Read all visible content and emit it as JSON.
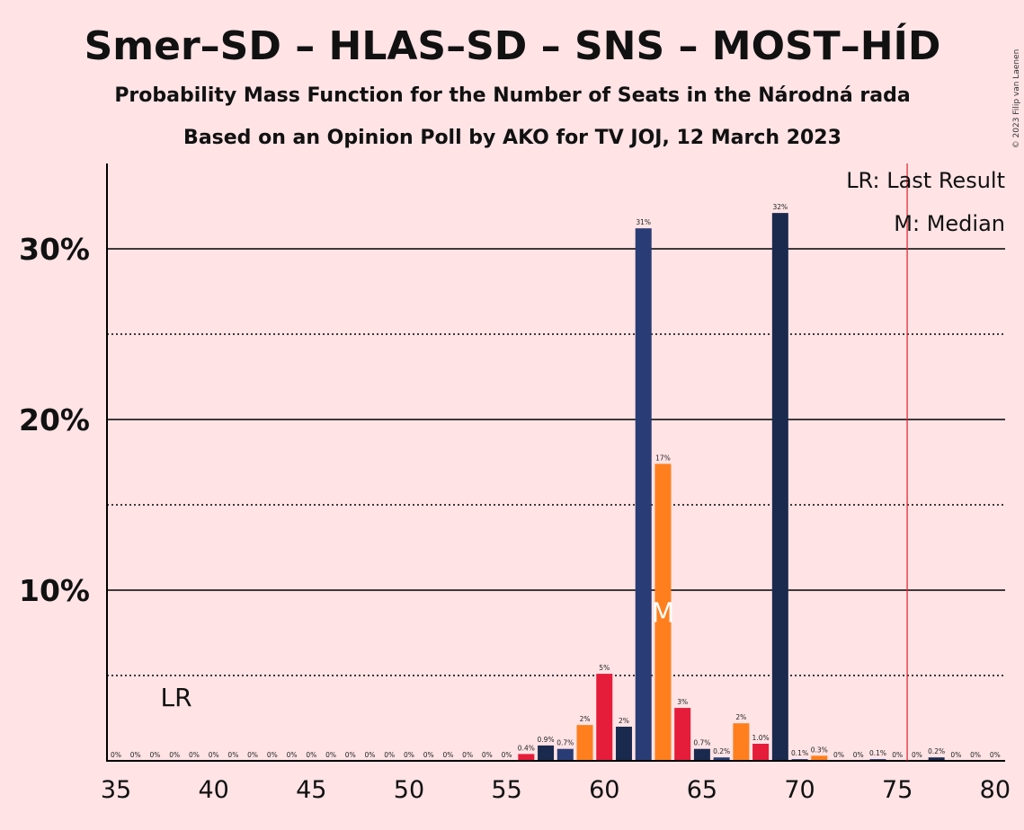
{
  "copyright": "© 2023 Filip van Laenen",
  "chart_data": {
    "type": "bar",
    "title": "Smer–SD – HLAS–SD – SNS – MOST–HÍD",
    "subtitle": "Probability Mass Function for the Number of Seats in the Národná rada",
    "subtitle2": "Based on an Opinion Poll by AKO for TV JOJ, 12 March 2023",
    "xlabel": "",
    "ylabel": "",
    "xlim": [
      35,
      80
    ],
    "ylim": [
      0,
      35
    ],
    "x_ticks": [
      35,
      40,
      45,
      50,
      55,
      60,
      65,
      70,
      75,
      80
    ],
    "y_ticks": [
      {
        "value": 10,
        "label": "10%"
      },
      {
        "value": 20,
        "label": "20%"
      },
      {
        "value": 30,
        "label": "30%"
      }
    ],
    "dotted_gridlines": [
      5,
      15,
      25
    ],
    "last_result": {
      "seat": 76,
      "label": "LR",
      "legend": "LR: Last Result",
      "color": "#E0202A"
    },
    "median": {
      "seat": 63,
      "label": "M",
      "legend": "M: Median"
    },
    "colors": [
      "#E51D3A",
      "#1A2A4E",
      "#2A3C75",
      "#FF7F1E"
    ],
    "bars": [
      {
        "seat": 35,
        "value": 0,
        "label": "0%",
        "color": 0
      },
      {
        "seat": 36,
        "value": 0,
        "label": "0%",
        "color": 0
      },
      {
        "seat": 37,
        "value": 0,
        "label": "0%",
        "color": 0
      },
      {
        "seat": 38,
        "value": 0,
        "label": "0%",
        "color": 0
      },
      {
        "seat": 39,
        "value": 0,
        "label": "0%",
        "color": 0
      },
      {
        "seat": 40,
        "value": 0,
        "label": "0%",
        "color": 0
      },
      {
        "seat": 41,
        "value": 0,
        "label": "0%",
        "color": 0
      },
      {
        "seat": 42,
        "value": 0,
        "label": "0%",
        "color": 0
      },
      {
        "seat": 43,
        "value": 0,
        "label": "0%",
        "color": 0
      },
      {
        "seat": 44,
        "value": 0,
        "label": "0%",
        "color": 0
      },
      {
        "seat": 45,
        "value": 0,
        "label": "0%",
        "color": 0
      },
      {
        "seat": 46,
        "value": 0,
        "label": "0%",
        "color": 0
      },
      {
        "seat": 47,
        "value": 0,
        "label": "0%",
        "color": 0
      },
      {
        "seat": 48,
        "value": 0,
        "label": "0%",
        "color": 0
      },
      {
        "seat": 49,
        "value": 0,
        "label": "0%",
        "color": 0
      },
      {
        "seat": 50,
        "value": 0,
        "label": "0%",
        "color": 0
      },
      {
        "seat": 51,
        "value": 0,
        "label": "0%",
        "color": 0
      },
      {
        "seat": 52,
        "value": 0,
        "label": "0%",
        "color": 0
      },
      {
        "seat": 53,
        "value": 0,
        "label": "0%",
        "color": 0
      },
      {
        "seat": 54,
        "value": 0,
        "label": "0%",
        "color": 0
      },
      {
        "seat": 55,
        "value": 0,
        "label": "0%",
        "color": 0
      },
      {
        "seat": 56,
        "value": 0.4,
        "label": "0.4%",
        "color": 0
      },
      {
        "seat": 57,
        "value": 0.9,
        "label": "0.9%",
        "color": 1
      },
      {
        "seat": 58,
        "value": 0.7,
        "label": "0.7%",
        "color": 2
      },
      {
        "seat": 59,
        "value": 2.1,
        "label": "2%",
        "color": 3
      },
      {
        "seat": 60,
        "value": 5.1,
        "label": "5%",
        "color": 0
      },
      {
        "seat": 61,
        "value": 2.0,
        "label": "2%",
        "color": 1
      },
      {
        "seat": 62,
        "value": 31.2,
        "label": "31%",
        "color": 2
      },
      {
        "seat": 63,
        "value": 17.4,
        "label": "17%",
        "color": 3
      },
      {
        "seat": 64,
        "value": 3.1,
        "label": "3%",
        "color": 0
      },
      {
        "seat": 65,
        "value": 0.7,
        "label": "0.7%",
        "color": 1
      },
      {
        "seat": 66,
        "value": 0.2,
        "label": "0.2%",
        "color": 2
      },
      {
        "seat": 67,
        "value": 2.2,
        "label": "2%",
        "color": 3
      },
      {
        "seat": 68,
        "value": 1.0,
        "label": "1.0%",
        "color": 0
      },
      {
        "seat": 69,
        "value": 32.1,
        "label": "32%",
        "color": 1
      },
      {
        "seat": 70,
        "value": 0.1,
        "label": "0.1%",
        "color": 2
      },
      {
        "seat": 71,
        "value": 0.3,
        "label": "0.3%",
        "color": 3
      },
      {
        "seat": 72,
        "value": 0,
        "label": "0%",
        "color": 0
      },
      {
        "seat": 73,
        "value": 0,
        "label": "0%",
        "color": 1
      },
      {
        "seat": 74,
        "value": 0.1,
        "label": "0.1%",
        "color": 2
      },
      {
        "seat": 75,
        "value": 0,
        "label": "0%",
        "color": 3
      },
      {
        "seat": 76,
        "value": 0,
        "label": "0%",
        "color": 0
      },
      {
        "seat": 77,
        "value": 0.2,
        "label": "0.2%",
        "color": 1
      },
      {
        "seat": 78,
        "value": 0,
        "label": "0%",
        "color": 2
      },
      {
        "seat": 79,
        "value": 0,
        "label": "0%",
        "color": 3
      },
      {
        "seat": 80,
        "value": 0,
        "label": "0%",
        "color": 0
      }
    ]
  }
}
